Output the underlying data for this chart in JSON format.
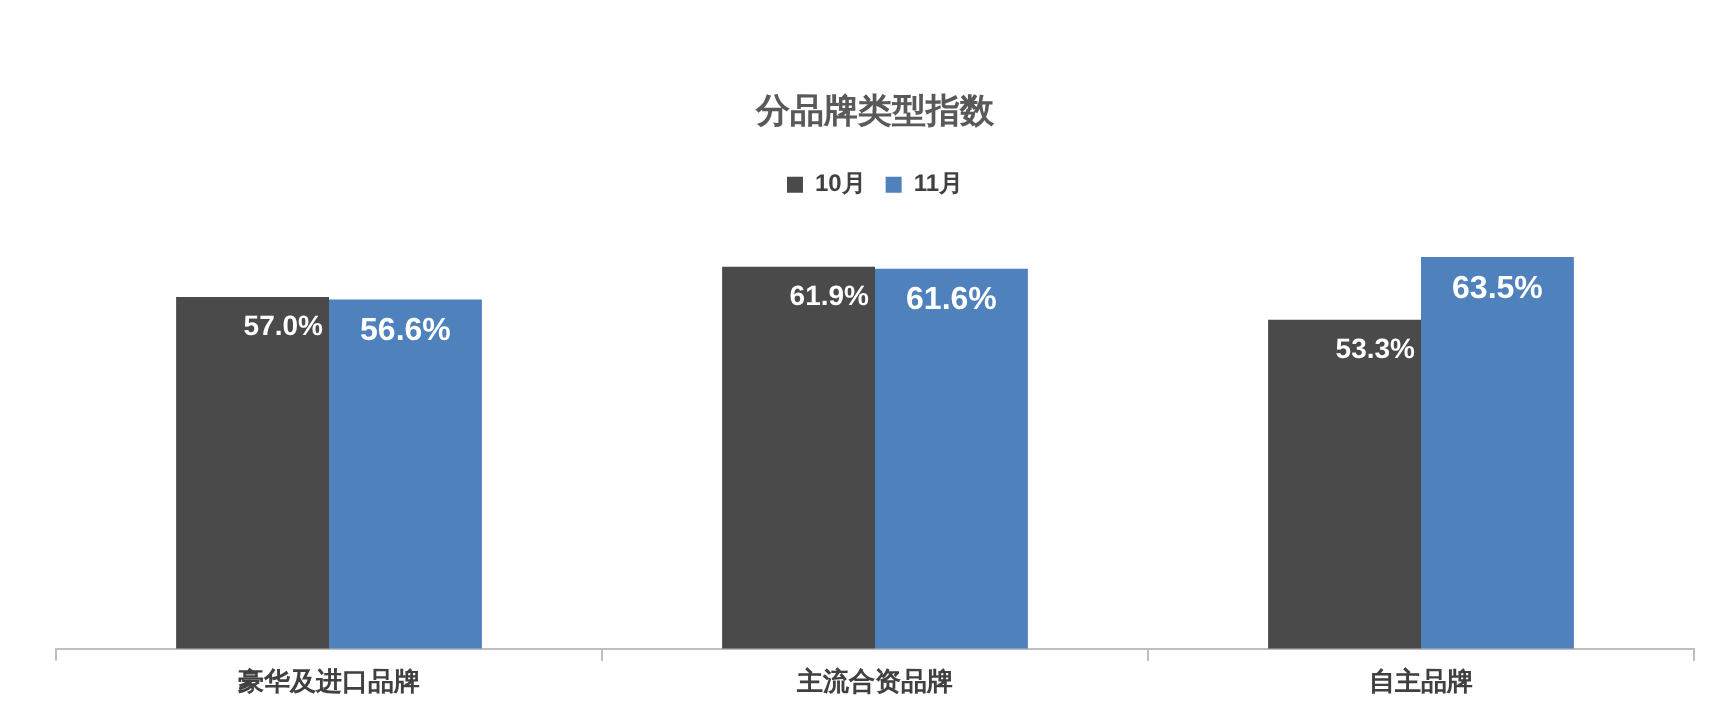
{
  "chart_data": {
    "type": "bar",
    "title": "分品牌类型指数",
    "categories": [
      "豪华及进口品牌",
      "主流合资品牌",
      "自主品牌"
    ],
    "series": [
      {
        "name": "10月",
        "color": "#4a4a4a",
        "values": [
          57.0,
          61.9,
          53.3
        ],
        "value_labels": [
          "57.0%",
          "61.9%",
          "53.3%"
        ]
      },
      {
        "name": "11月",
        "color": "#4f81bd",
        "values": [
          56.6,
          61.6,
          63.5
        ],
        "value_labels": [
          "56.6%",
          "61.6%",
          "63.5%"
        ]
      }
    ],
    "legend": "top",
    "grid": false
  }
}
